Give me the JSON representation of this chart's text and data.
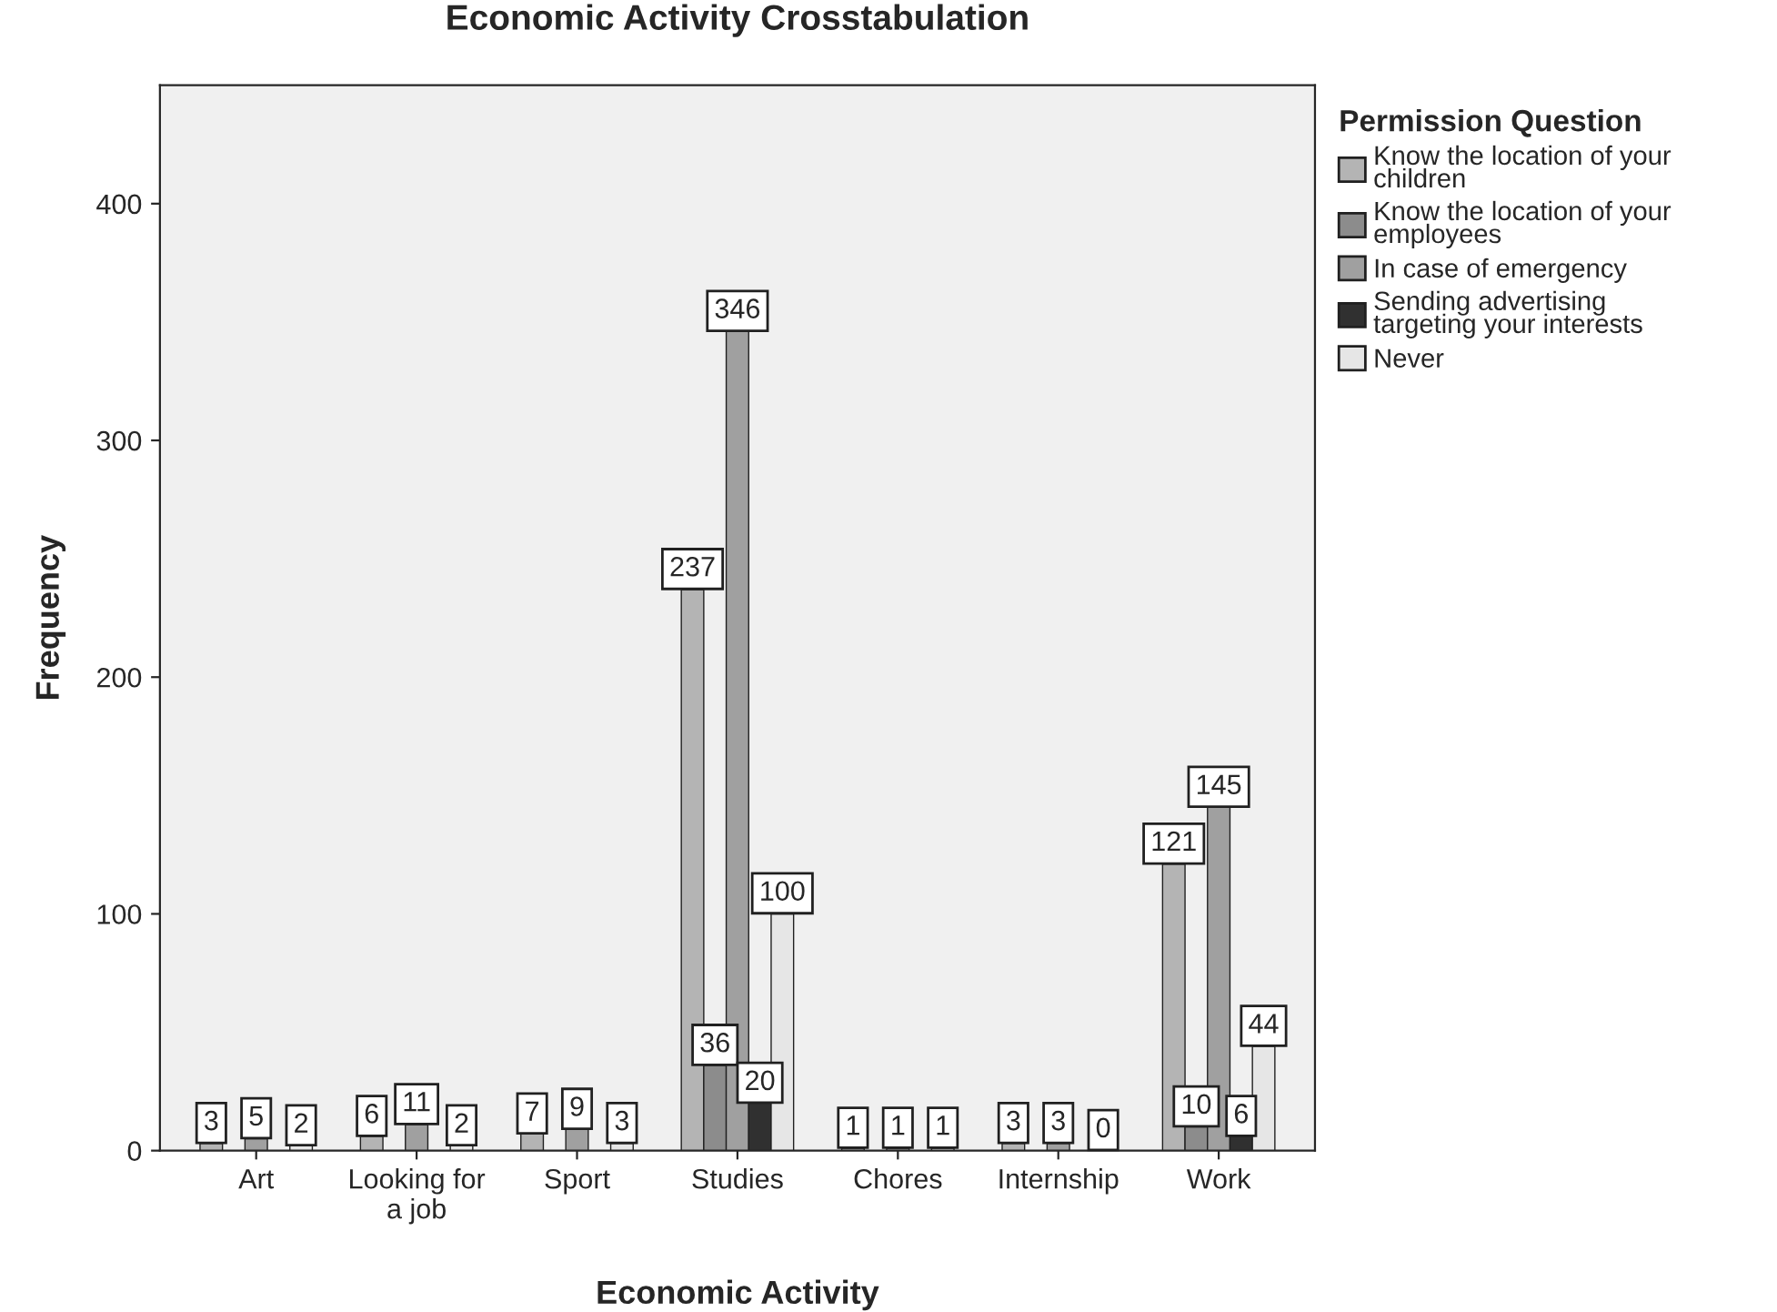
{
  "chart_data": {
    "type": "bar",
    "title": "Economic Activity Crosstabulation",
    "xlabel": "Economic Activity",
    "ylabel": "Frequency",
    "legend_title": "Permission Question",
    "categories": [
      "Art",
      "Looking for a job",
      "Sport",
      "Studies",
      "Chores",
      "Internship",
      "Work"
    ],
    "series": [
      {
        "name": "Know the location of your children",
        "color": "#b4b4b4",
        "values": [
          3,
          6,
          7,
          237,
          1,
          3,
          121
        ]
      },
      {
        "name": "Know the location of your employees",
        "color": "#8c8c8c",
        "values": [
          null,
          null,
          null,
          36,
          null,
          null,
          10
        ]
      },
      {
        "name": "In case of emergency",
        "color": "#a0a0a0",
        "values": [
          5,
          11,
          9,
          346,
          1,
          3,
          145
        ]
      },
      {
        "name": "Sending advertising targeting your interests",
        "color": "#303030",
        "values": [
          null,
          null,
          null,
          20,
          null,
          null,
          6
        ]
      },
      {
        "name": "Never",
        "color": "#e6e6e6",
        "values": [
          2,
          2,
          3,
          100,
          1,
          0,
          44
        ]
      }
    ],
    "ylim": [
      0,
      450
    ],
    "yticks": [
      0,
      100,
      200,
      300,
      400
    ],
    "grid": false,
    "legend": "right",
    "data_labels": true
  }
}
